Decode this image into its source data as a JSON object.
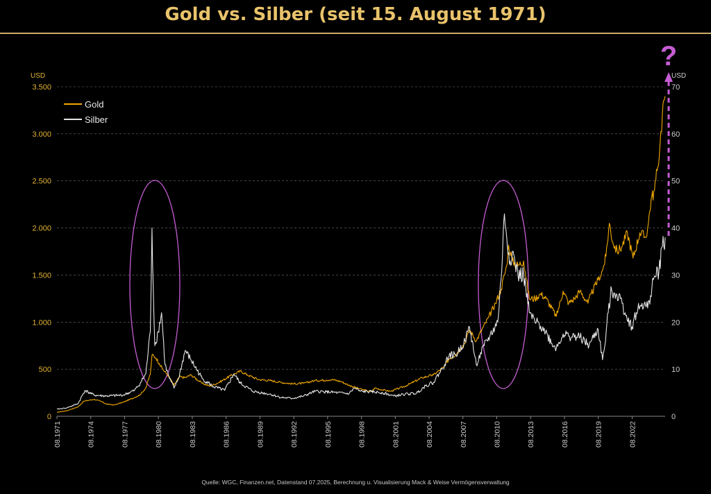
{
  "title": "Gold vs. Silber (seit 15. August 1971)",
  "source": "Quelle: WGC, Finanzen.net, Datenstand 07.2025, Berechnung u. Visualisierung Mack & Weise Vermögensverwaltung",
  "colors": {
    "background": "#000000",
    "title": "#e9c36b",
    "rule": "#cfae6a",
    "gold": "#f2a900",
    "silver": "#e6e6e6",
    "annotation": "#c65dd4",
    "grid": "#6e6e6e",
    "axis_left": "#e3b431",
    "axis_right": "#cccccc"
  },
  "annotation": {
    "question_mark": "?"
  },
  "chart_data": {
    "type": "line",
    "title": "Gold vs. Silber (seit 15. August 1971)",
    "xlabel": "",
    "ylabel_left": "USD",
    "ylabel_right": "USD",
    "xlim": [
      1971.62,
      2025.55
    ],
    "ylim_left": [
      0,
      3500
    ],
    "ylim_right": [
      0,
      70
    ],
    "grid": true,
    "legend_position": "top-left",
    "x_ticks": [
      1971.62,
      1974.62,
      1977.62,
      1980.62,
      1983.62,
      1986.62,
      1989.62,
      1992.62,
      1995.62,
      1998.62,
      2001.62,
      2004.62,
      2007.62,
      2010.62,
      2013.62,
      2016.62,
      2019.62,
      2022.62
    ],
    "x_tick_labels": [
      "08.1971",
      "08.1974",
      "08.1977",
      "08.1980",
      "08.1983",
      "08.1986",
      "08.1989",
      "08.1992",
      "08.1995",
      "08.1998",
      "08.2001",
      "08.2004",
      "08.2007",
      "08.2010",
      "08.2013",
      "08.2016",
      "08.2019",
      "08.2022"
    ],
    "y_left_ticks": [
      0,
      500,
      1000,
      1500,
      2000,
      2500,
      3000,
      3500
    ],
    "y_left_tick_labels": [
      "0",
      "500",
      "1.000",
      "1.500",
      "2.000",
      "2.500",
      "3.000",
      "3.500"
    ],
    "y_right_ticks": [
      0,
      10,
      20,
      30,
      40,
      50,
      60,
      70
    ],
    "y_right_tick_labels": [
      "0",
      "10",
      "20",
      "30",
      "40",
      "50",
      "60",
      "70"
    ],
    "series": [
      {
        "name": "Gold",
        "axis": "left",
        "x": [
          1971.62,
          1972.5,
          1973.5,
          1974.0,
          1974.9,
          1975.5,
          1976.0,
          1976.7,
          1977.5,
          1978.5,
          1979.0,
          1979.5,
          1979.9,
          1980.05,
          1980.4,
          1980.7,
          1981.0,
          1981.5,
          1982.0,
          1982.5,
          1983.0,
          1983.5,
          1984.5,
          1985.2,
          1986.0,
          1987.0,
          1987.9,
          1988.5,
          1989.5,
          1990.5,
          1991.5,
          1992.5,
          1993.5,
          1994.5,
          1995.5,
          1996.0,
          1996.8,
          1997.5,
          1998.5,
          1999.5,
          1999.8,
          2000.5,
          2001.2,
          2002.0,
          2002.5,
          2003.0,
          2004.0,
          2005.0,
          2005.9,
          2006.4,
          2007.0,
          2007.8,
          2008.2,
          2008.8,
          2009.3,
          2009.9,
          2010.5,
          2011.0,
          2011.5,
          2011.67,
          2012.0,
          2012.5,
          2013.0,
          2013.5,
          2014.0,
          2014.5,
          2015.0,
          2015.9,
          2016.5,
          2017.0,
          2017.5,
          2018.0,
          2018.7,
          2019.0,
          2019.6,
          2020.0,
          2020.3,
          2020.6,
          2020.9,
          2021.3,
          2021.7,
          2022.2,
          2022.7,
          2023.3,
          2023.8,
          2024.0,
          2024.3,
          2024.6,
          2024.9,
          2025.1,
          2025.3,
          2025.4,
          2025.55
        ],
        "values": [
          42,
          60,
          100,
          160,
          180,
          160,
          130,
          120,
          150,
          200,
          230,
          300,
          450,
          650,
          620,
          560,
          500,
          430,
          330,
          420,
          410,
          440,
          350,
          320,
          360,
          430,
          480,
          440,
          390,
          380,
          360,
          345,
          350,
          380,
          385,
          390,
          370,
          330,
          290,
          260,
          300,
          280,
          265,
          300,
          320,
          350,
          410,
          440,
          520,
          610,
          660,
          780,
          920,
          800,
          920,
          1050,
          1200,
          1350,
          1600,
          1820,
          1650,
          1600,
          1650,
          1250,
          1250,
          1300,
          1250,
          1060,
          1330,
          1200,
          1250,
          1330,
          1200,
          1300,
          1450,
          1550,
          1700,
          2050,
          1850,
          1750,
          1800,
          1950,
          1680,
          1950,
          1900,
          2000,
          2300,
          2400,
          2650,
          2900,
          3200,
          3350,
          3400
        ]
      },
      {
        "name": "Silber",
        "axis": "right",
        "x": [
          1971.62,
          1972.5,
          1973.5,
          1974.1,
          1974.9,
          1976.0,
          1977.5,
          1978.5,
          1979.0,
          1979.5,
          1979.9,
          1980.05,
          1980.15,
          1980.3,
          1980.6,
          1980.9,
          1981.2,
          1981.6,
          1982.0,
          1982.4,
          1983.0,
          1983.5,
          1984.5,
          1985.5,
          1986.5,
          1987.3,
          1987.9,
          1989.0,
          1990.5,
          1991.5,
          1992.5,
          1993.5,
          1994.5,
          1995.5,
          1996.5,
          1997.5,
          1998.0,
          1998.5,
          1999.5,
          2000.5,
          2001.5,
          2002.5,
          2003.5,
          2004.3,
          2005.0,
          2006.0,
          2006.4,
          2007.0,
          2007.8,
          2008.2,
          2008.8,
          2009.5,
          2010.0,
          2010.7,
          2011.0,
          2011.3,
          2011.5,
          2011.8,
          2012.0,
          2012.5,
          2013.0,
          2013.5,
          2014.0,
          2014.7,
          2015.5,
          2015.9,
          2016.5,
          2017.0,
          2018.0,
          2018.8,
          2019.0,
          2019.6,
          2020.0,
          2020.2,
          2020.5,
          2020.8,
          2021.2,
          2021.6,
          2022.0,
          2022.6,
          2023.0,
          2023.5,
          2024.0,
          2024.5,
          2025.0,
          2025.3,
          2025.55
        ],
        "values": [
          1.5,
          1.8,
          2.7,
          5.5,
          4.5,
          4.3,
          4.5,
          5.5,
          7,
          9,
          18,
          40,
          28,
          15,
          18,
          22,
          11,
          8,
          6,
          8,
          14,
          12,
          8,
          6.3,
          5.5,
          9,
          7,
          5.3,
          4.7,
          4,
          3.8,
          4.3,
          5.3,
          5.2,
          5,
          4.8,
          6,
          5.3,
          5.2,
          5,
          4.3,
          4.7,
          4.9,
          6.5,
          7.2,
          11,
          13,
          13,
          16,
          19,
          11,
          15,
          17,
          20,
          29,
          43,
          38,
          33,
          35,
          30,
          30,
          22,
          20,
          19,
          15.5,
          14.5,
          17.5,
          17,
          16.8,
          15,
          16,
          18.5,
          12,
          15,
          22,
          27,
          26,
          25,
          22,
          19,
          22,
          24,
          23,
          29,
          31,
          36,
          38
        ]
      }
    ]
  }
}
